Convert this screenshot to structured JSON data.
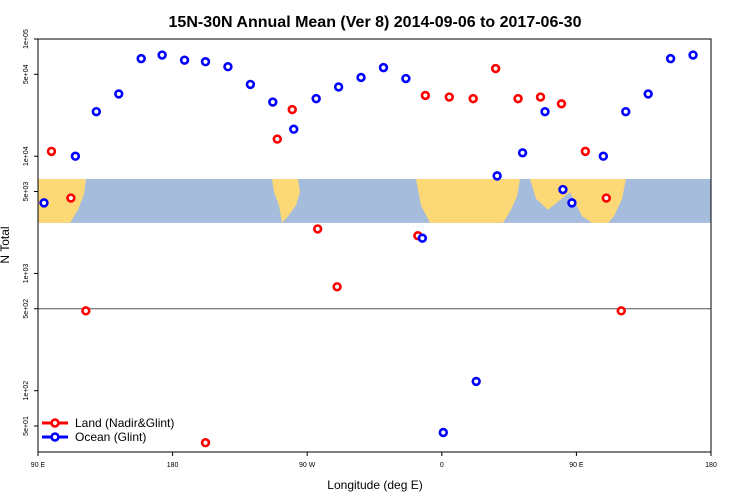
{
  "chart_data": {
    "type": "scatter",
    "title": "15N-30N Annual Mean (Ver 8)   2014-09-06 to 2017-06-30",
    "xlabel": "Longitude (deg E)",
    "ylabel": "N Total",
    "y_scale": "log",
    "xlim": [
      90,
      540
    ],
    "ylim": [
      30,
      100000
    ],
    "x_ticks": [
      {
        "value": 90,
        "label": "90 E"
      },
      {
        "value": 180,
        "label": "180"
      },
      {
        "value": 270,
        "label": "90 W"
      },
      {
        "value": 360,
        "label": "0"
      },
      {
        "value": 450,
        "label": "90 E"
      },
      {
        "value": 540,
        "label": "180"
      }
    ],
    "y_ticks": [
      {
        "value": 50,
        "label": "5e+01"
      },
      {
        "value": 100,
        "label": "1e+02"
      },
      {
        "value": 500,
        "label": "5e+02"
      },
      {
        "value": 1000,
        "label": "1e+03"
      },
      {
        "value": 5000,
        "label": "5e+03"
      },
      {
        "value": 10000,
        "label": "1e+04"
      },
      {
        "value": 50000,
        "label": "5e+04"
      },
      {
        "value": 100000,
        "label": "1e+05"
      }
    ],
    "divider_y": 500,
    "map_band_range": [
      2700,
      6400
    ],
    "legend_position": "bottom-left",
    "series": [
      {
        "name": "Land (Nadir&Glint)",
        "color": "#ff0000",
        "points": [
          {
            "x": 99,
            "y": 11000
          },
          {
            "x": 112,
            "y": 4400
          },
          {
            "x": 122,
            "y": 480
          },
          {
            "x": 202,
            "y": 36
          },
          {
            "x": 250,
            "y": 14000
          },
          {
            "x": 260,
            "y": 25000
          },
          {
            "x": 277,
            "y": 2400
          },
          {
            "x": 290,
            "y": 770
          },
          {
            "x": 344,
            "y": 2100
          },
          {
            "x": 349,
            "y": 33000
          },
          {
            "x": 365,
            "y": 32000
          },
          {
            "x": 381,
            "y": 31000
          },
          {
            "x": 396,
            "y": 56000
          },
          {
            "x": 411,
            "y": 31000
          },
          {
            "x": 426,
            "y": 32000
          },
          {
            "x": 440,
            "y": 28000
          },
          {
            "x": 456,
            "y": 11000
          },
          {
            "x": 470,
            "y": 4400
          },
          {
            "x": 480,
            "y": 480
          }
        ]
      },
      {
        "name": "Ocean (Glint)",
        "color": "#0000ff",
        "points": [
          {
            "x": 94,
            "y": 4000
          },
          {
            "x": 115,
            "y": 10000
          },
          {
            "x": 129,
            "y": 24000
          },
          {
            "x": 144,
            "y": 34000
          },
          {
            "x": 159,
            "y": 68000
          },
          {
            "x": 173,
            "y": 73000
          },
          {
            "x": 188,
            "y": 66000
          },
          {
            "x": 202,
            "y": 64000
          },
          {
            "x": 217,
            "y": 58000
          },
          {
            "x": 232,
            "y": 41000
          },
          {
            "x": 247,
            "y": 29000
          },
          {
            "x": 261,
            "y": 17000
          },
          {
            "x": 276,
            "y": 31000
          },
          {
            "x": 291,
            "y": 39000
          },
          {
            "x": 306,
            "y": 47000
          },
          {
            "x": 321,
            "y": 57000
          },
          {
            "x": 336,
            "y": 46000
          },
          {
            "x": 347,
            "y": 2000
          },
          {
            "x": 361,
            "y": 44
          },
          {
            "x": 383,
            "y": 120
          },
          {
            "x": 397,
            "y": 6800
          },
          {
            "x": 414,
            "y": 10700
          },
          {
            "x": 429,
            "y": 24000
          },
          {
            "x": 441,
            "y": 5200
          },
          {
            "x": 447,
            "y": 4000
          },
          {
            "x": 468,
            "y": 10000
          },
          {
            "x": 483,
            "y": 24000
          },
          {
            "x": 498,
            "y": 34000
          },
          {
            "x": 513,
            "y": 68000
          },
          {
            "x": 528,
            "y": 73000
          }
        ]
      }
    ]
  }
}
